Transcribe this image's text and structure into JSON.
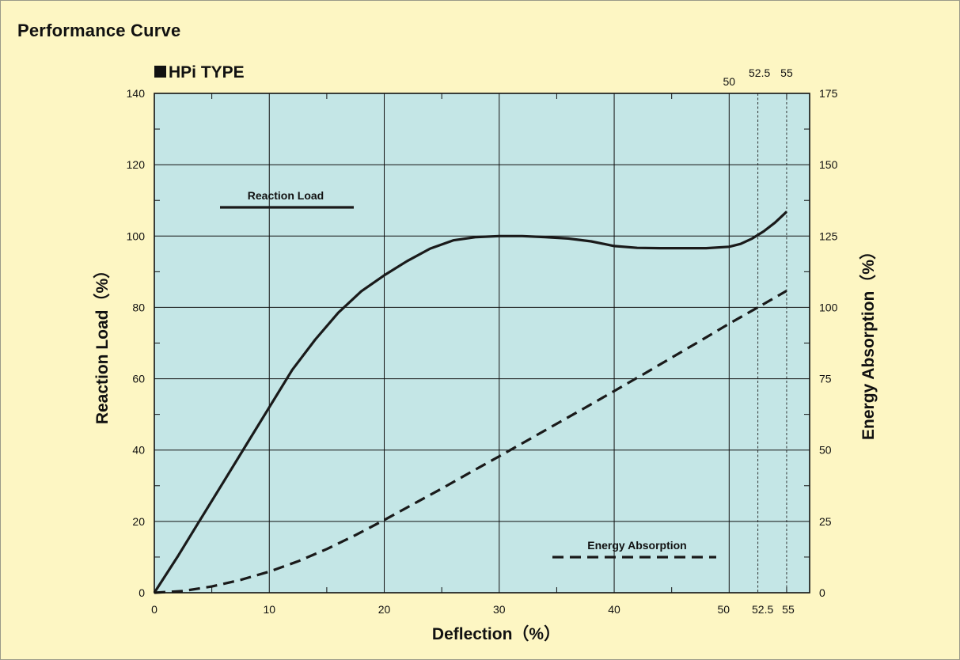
{
  "page": {
    "title": "Performance Curve"
  },
  "chart_data": {
    "type": "line",
    "title": "HPi TYPE",
    "xlabel": "Deflection（%）",
    "ylabel": "Reaction Load（%）",
    "y2label": "Energy Absorption（%）",
    "xlim": [
      0,
      57
    ],
    "ylim": [
      0,
      140
    ],
    "y2lim": [
      0,
      175
    ],
    "x_ticks": [
      "0",
      "10",
      "20",
      "30",
      "40",
      "50",
      "52.5",
      "55"
    ],
    "x_tick_values": [
      0,
      10,
      20,
      30,
      40,
      50,
      52.5,
      55
    ],
    "x_top_ticks": [
      "50",
      "52.5",
      "55"
    ],
    "x_top_tick_values": [
      50,
      52.5,
      55
    ],
    "y_ticks": [
      "0",
      "20",
      "40",
      "60",
      "80",
      "100",
      "120",
      "140"
    ],
    "y_tick_values": [
      0,
      20,
      40,
      60,
      80,
      100,
      120,
      140
    ],
    "y2_ticks": [
      "0",
      "25",
      "50",
      "75",
      "100",
      "125",
      "150",
      "175"
    ],
    "y2_tick_values": [
      0,
      25,
      50,
      75,
      100,
      125,
      150,
      175
    ],
    "grid": true,
    "reference_lines_x": [
      52.5,
      55
    ],
    "series": [
      {
        "name": "Reaction Load",
        "axis": "left",
        "style": "solid",
        "x": [
          0,
          2,
          4,
          6,
          8,
          10,
          12,
          14,
          16,
          18,
          20,
          22,
          24,
          26,
          28,
          30,
          32,
          34,
          36,
          38,
          40,
          42,
          44,
          46,
          48,
          50,
          51,
          52,
          53,
          54,
          55
        ],
        "y": [
          0,
          10,
          20.5,
          31,
          41.5,
          52,
          62.5,
          71,
          78.5,
          84.5,
          89,
          93,
          96.5,
          98.8,
          99.7,
          100,
          100,
          99.7,
          99.3,
          98.5,
          97.2,
          96.7,
          96.6,
          96.6,
          96.6,
          97,
          97.8,
          99.3,
          101.3,
          103.8,
          106.8
        ]
      },
      {
        "name": "Energy Absorption",
        "axis": "right",
        "style": "dashed",
        "x": [
          0,
          2.5,
          5,
          7.5,
          10,
          12.5,
          15,
          17.5,
          20,
          22.5,
          25,
          27.5,
          30,
          32.5,
          35,
          37.5,
          40,
          42.5,
          45,
          47.5,
          50,
          52.5,
          55
        ],
        "y": [
          0,
          0.6,
          2.2,
          4.5,
          7.4,
          11,
          15.3,
          20.2,
          25.5,
          31,
          36.5,
          42.2,
          47.8,
          53.5,
          59.2,
          64.9,
          70.7,
          76.5,
          82.4,
          88.3,
          94.3,
          100,
          105.8
        ]
      }
    ]
  }
}
